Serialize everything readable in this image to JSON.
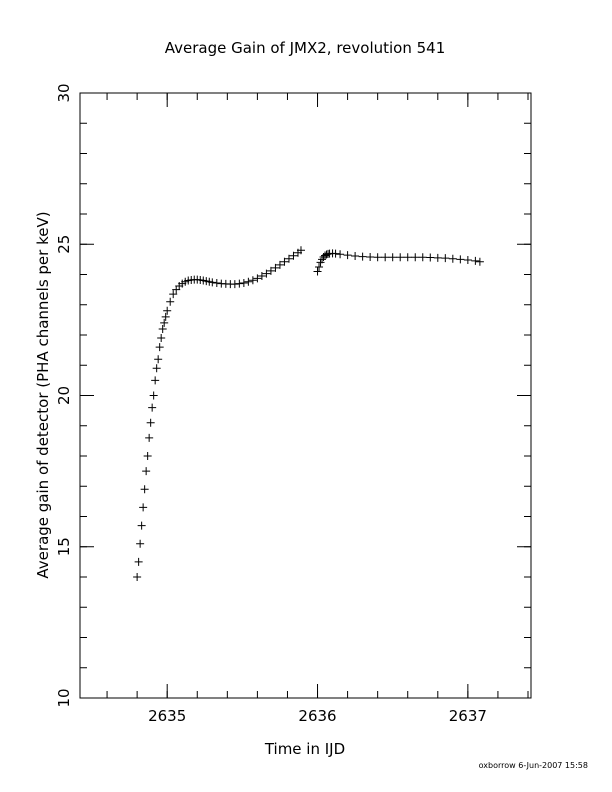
{
  "footer": {
    "credit": "oxborrow  6-Jun-2007 15:58"
  },
  "chart_data": {
    "type": "scatter",
    "title": "Average Gain of JMX2, revolution 541",
    "xlabel": "Time in IJD",
    "ylabel": "Average gain of detector (PHA channels per keV)",
    "xlim": [
      2634.42,
      2637.42
    ],
    "ylim": [
      10,
      30
    ],
    "x_ticks": [
      2635,
      2636,
      2637
    ],
    "y_ticks": [
      10,
      15,
      20,
      25,
      30
    ],
    "x_minor_step": 0.2,
    "y_minor_step": 1,
    "grid": false,
    "marker": "+",
    "color": "#000000",
    "series": [
      {
        "x": [
          2634.8,
          2634.81,
          2634.82,
          2634.83,
          2634.84,
          2634.85,
          2634.86,
          2634.87,
          2634.88,
          2634.89,
          2634.9,
          2634.91,
          2634.92,
          2634.93,
          2634.94,
          2634.95,
          2634.96,
          2634.97,
          2634.98,
          2634.99,
          2635.0,
          2635.02,
          2635.04,
          2635.06,
          2635.08,
          2635.1,
          2635.12,
          2635.14,
          2635.16,
          2635.18,
          2635.2,
          2635.22,
          2635.24,
          2635.26,
          2635.28,
          2635.3,
          2635.33,
          2635.36,
          2635.39,
          2635.42,
          2635.45,
          2635.48,
          2635.51,
          2635.54,
          2635.57,
          2635.6,
          2635.63,
          2635.66,
          2635.69,
          2635.72,
          2635.75,
          2635.78,
          2635.81,
          2635.84,
          2635.87,
          2635.89
        ],
        "y": [
          14.0,
          14.5,
          15.1,
          15.7,
          16.3,
          16.9,
          17.5,
          18.0,
          18.6,
          19.1,
          19.6,
          20.0,
          20.5,
          20.9,
          21.2,
          21.6,
          21.9,
          22.2,
          22.4,
          22.6,
          22.8,
          23.1,
          23.35,
          23.5,
          23.62,
          23.7,
          23.76,
          23.8,
          23.82,
          23.83,
          23.83,
          23.82,
          23.8,
          23.78,
          23.76,
          23.74,
          23.72,
          23.7,
          23.69,
          23.68,
          23.68,
          23.7,
          23.72,
          23.76,
          23.81,
          23.87,
          23.95,
          24.03,
          24.12,
          24.22,
          24.32,
          24.42,
          24.52,
          24.62,
          24.72,
          24.8
        ]
      },
      {
        "x": [
          2636.0,
          2636.01,
          2636.02,
          2636.03,
          2636.04,
          2636.05,
          2636.06,
          2636.07,
          2636.08,
          2636.1,
          2636.12,
          2636.15,
          2636.2,
          2636.25,
          2636.3,
          2636.35,
          2636.4,
          2636.45,
          2636.5,
          2636.55,
          2636.6,
          2636.65,
          2636.7,
          2636.75,
          2636.8,
          2636.85,
          2636.9,
          2636.95,
          2637.0,
          2637.05,
          2637.08
        ],
        "y": [
          24.1,
          24.25,
          24.4,
          24.5,
          24.58,
          24.63,
          24.66,
          24.68,
          24.69,
          24.7,
          24.69,
          24.67,
          24.64,
          24.61,
          24.59,
          24.58,
          24.57,
          24.57,
          24.57,
          24.57,
          24.57,
          24.57,
          24.57,
          24.56,
          24.55,
          24.54,
          24.52,
          24.5,
          24.48,
          24.45,
          24.42
        ]
      }
    ]
  }
}
